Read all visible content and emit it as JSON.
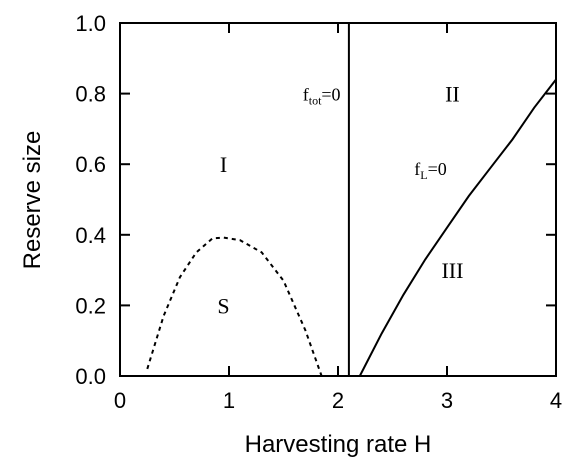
{
  "chart_data": {
    "type": "line",
    "title": "",
    "xlabel": "Harvesting rate H",
    "ylabel": "Reserve size",
    "xlim": [
      0,
      4
    ],
    "ylim": [
      0,
      1
    ],
    "x_ticks": [
      "0",
      "1",
      "2",
      "3",
      "4"
    ],
    "y_ticks": [
      "0.0",
      "0.2",
      "0.4",
      "0.6",
      "0.8",
      "1.0"
    ],
    "grid": false,
    "legend": "none",
    "series": [
      {
        "style": "dashed",
        "points": [
          [
            0.25,
            0.02
          ],
          [
            0.4,
            0.17
          ],
          [
            0.55,
            0.28
          ],
          [
            0.7,
            0.35
          ],
          [
            0.85,
            0.39
          ],
          [
            0.95,
            0.392
          ],
          [
            1.1,
            0.385
          ],
          [
            1.3,
            0.35
          ],
          [
            1.5,
            0.27
          ],
          [
            1.7,
            0.13
          ],
          [
            1.85,
            0.0
          ]
        ]
      },
      {
        "label": {
          "main": "f",
          "sub": "tot",
          "suffix": "=0"
        },
        "style": "solid",
        "points": [
          [
            2.1,
            0.0
          ],
          [
            2.1,
            1.0
          ]
        ]
      },
      {
        "label": {
          "main": "f",
          "sub": "L",
          "suffix": "=0"
        },
        "style": "solid",
        "points": [
          [
            2.2,
            0.0
          ],
          [
            2.4,
            0.12
          ],
          [
            2.6,
            0.23
          ],
          [
            2.8,
            0.33
          ],
          [
            3.0,
            0.42
          ],
          [
            3.2,
            0.51
          ],
          [
            3.4,
            0.59
          ],
          [
            3.6,
            0.67
          ],
          [
            3.8,
            0.76
          ],
          [
            4.0,
            0.84
          ]
        ]
      }
    ],
    "regions": [
      {
        "text": "I",
        "x": 0.95,
        "y": 0.6
      },
      {
        "text": "S",
        "x": 0.95,
        "y": 0.2
      },
      {
        "text": "II",
        "x": 3.05,
        "y": 0.8
      },
      {
        "text": "III",
        "x": 3.05,
        "y": 0.3
      }
    ]
  }
}
